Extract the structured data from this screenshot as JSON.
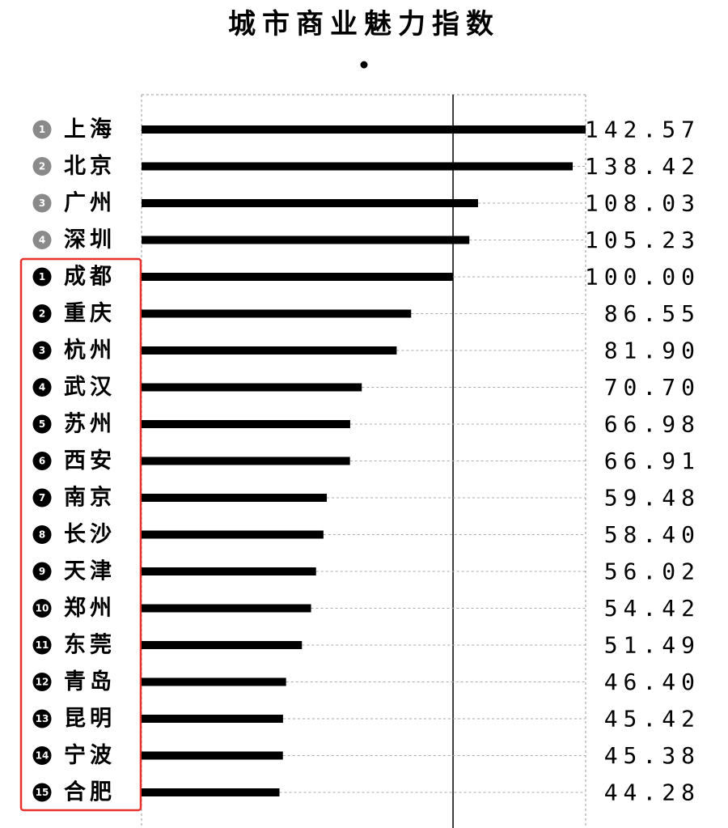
{
  "chart_data": {
    "type": "bar",
    "orientation": "horizontal",
    "title": "城市商业魅力指数",
    "categories": [
      "上海",
      "北京",
      "广州",
      "深圳",
      "成都",
      "重庆",
      "杭州",
      "武汉",
      "苏州",
      "西安",
      "南京",
      "长沙",
      "天津",
      "郑州",
      "东莞",
      "青岛",
      "昆明",
      "宁波",
      "合肥"
    ],
    "ranks": [
      1,
      2,
      3,
      4,
      1,
      2,
      3,
      4,
      5,
      6,
      7,
      8,
      9,
      10,
      11,
      12,
      13,
      14,
      15
    ],
    "badge_colors": [
      "#8a8a8a",
      "#8a8a8a",
      "#8a8a8a",
      "#8a8a8a",
      "#000000",
      "#000000",
      "#000000",
      "#000000",
      "#000000",
      "#000000",
      "#000000",
      "#000000",
      "#000000",
      "#000000",
      "#000000",
      "#000000",
      "#000000",
      "#000000",
      "#000000"
    ],
    "values": [
      142.57,
      138.42,
      108.03,
      105.23,
      100,
      86.55,
      81.9,
      70.7,
      66.98,
      66.91,
      59.48,
      58.4,
      56.02,
      54.42,
      51.49,
      46.4,
      45.42,
      45.38,
      44.28
    ],
    "value_labels": [
      "142.57",
      "138.42",
      "108.03",
      "105.23",
      "100.00",
      "86.55",
      "81.90",
      "70.70",
      "66.98",
      "66.91",
      "59.48",
      "58.40",
      "56.02",
      "54.42",
      "51.49",
      "46.40",
      "45.42",
      "45.38",
      "44.28"
    ],
    "color": "#000000",
    "xlim": [
      0,
      142.57
    ],
    "reference": 100,
    "highlight": {
      "from": 4,
      "to": 18,
      "color": "#e8302a"
    }
  }
}
